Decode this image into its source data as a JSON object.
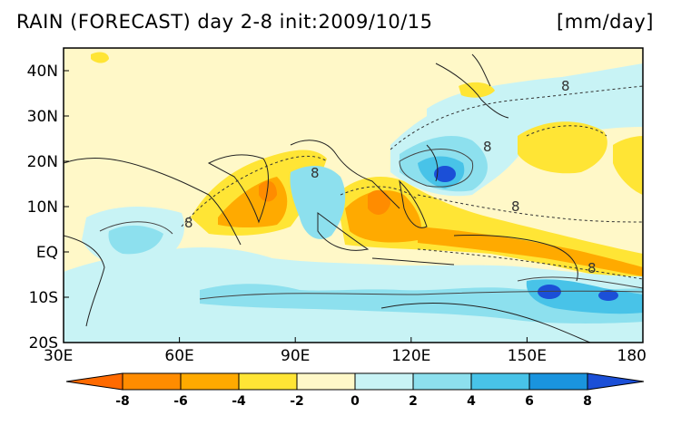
{
  "title": {
    "left": "RAIN (FORECAST) day 2-8 init:2009/10/15",
    "units": "[mm/day]"
  },
  "map": {
    "lon_range": [
      30,
      180
    ],
    "lat_range": [
      -20,
      45
    ],
    "lat_ticks": [
      {
        "value": 40,
        "label": "40N"
      },
      {
        "value": 30,
        "label": "30N"
      },
      {
        "value": 20,
        "label": "20N"
      },
      {
        "value": 10,
        "label": "10N"
      },
      {
        "value": 0,
        "label": "EQ"
      },
      {
        "value": -10,
        "label": "10S"
      },
      {
        "value": -20,
        "label": "20S"
      }
    ],
    "lon_ticks": [
      {
        "value": 30,
        "label": "30E"
      },
      {
        "value": 60,
        "label": "60E"
      },
      {
        "value": 90,
        "label": "90E"
      },
      {
        "value": 120,
        "label": "120E"
      },
      {
        "value": 150,
        "label": "150E"
      },
      {
        "value": 180,
        "label": "180"
      }
    ],
    "contour_labels": [
      "8",
      "8",
      "8",
      "8",
      "8",
      "8"
    ]
  },
  "colorbar": {
    "labels": [
      "-8",
      "-6",
      "-4",
      "-2",
      "0",
      "2",
      "4",
      "6",
      "8"
    ],
    "colors": [
      "#ff6a00",
      "#ff8c00",
      "#ffaa00",
      "#ffe535",
      "#fff8c8",
      "#c8f3f5",
      "#8de0ee",
      "#48c3e8",
      "#1a94de",
      "#1b4fd7"
    ]
  },
  "fill_colors": {
    "ocean_neutral": "#fff8c8",
    "dry_light": "#ffe535",
    "dry_mid": "#ffaa00",
    "dry_strong": "#ff6a00",
    "wet_light": "#c8f3f5",
    "wet_mid": "#8de0ee",
    "wet_strong": "#48c3e8",
    "wet_max": "#1b4fd7"
  }
}
